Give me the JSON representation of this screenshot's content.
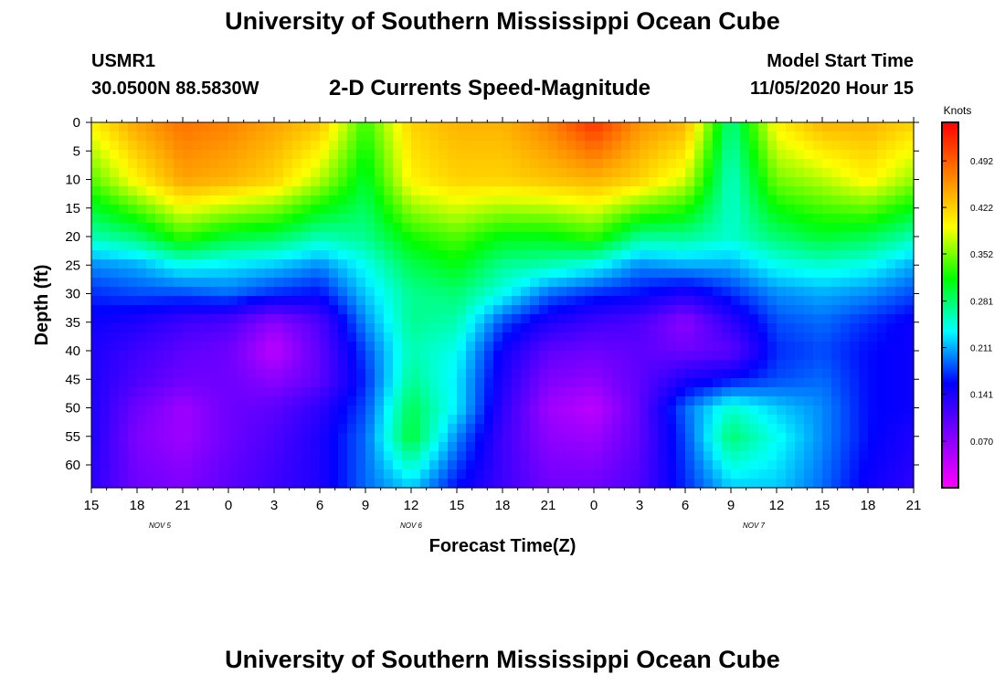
{
  "header": {
    "title": "University of Southern Mississippi Ocean Cube",
    "station": "USMR1",
    "coords": "30.0500N 88.5830W",
    "plot_title": "2-D Currents Speed-Magnitude",
    "model_label": "Model Start Time",
    "model_time": "11/05/2020 Hour 15"
  },
  "footer": {
    "title": "University of Southern Mississippi Ocean Cube"
  },
  "chart_data": {
    "type": "heatmap",
    "title": "2-D Currents Speed-Magnitude",
    "xlabel": "Forecast Time(Z)",
    "ylabel": "Depth (ft)",
    "x_ticks": [
      "15",
      "18",
      "21",
      "0",
      "3",
      "6",
      "9",
      "12",
      "15",
      "18",
      "21",
      "0",
      "3",
      "6",
      "9",
      "12",
      "15",
      "18",
      "21"
    ],
    "x_hours": [
      0,
      3,
      6,
      9,
      12,
      15,
      18,
      21,
      24,
      27,
      30,
      33,
      36,
      39,
      42,
      45,
      48,
      51,
      54
    ],
    "x_range_hours": [
      0,
      54
    ],
    "date_labels": [
      {
        "label": "NOV 5",
        "hour": 4.5
      },
      {
        "label": "NOV 6",
        "hour": 21
      },
      {
        "label": "NOV 7",
        "hour": 43.5
      }
    ],
    "y_ticks": [
      0,
      5,
      10,
      15,
      20,
      25,
      30,
      35,
      40,
      45,
      50,
      55,
      60
    ],
    "y_range": [
      0,
      64
    ],
    "colorbar": {
      "label": "Knots",
      "ticks": [
        0.492,
        0.422,
        0.352,
        0.281,
        0.211,
        0.141,
        0.07
      ],
      "range": [
        0.0,
        0.55
      ],
      "colors": [
        "#ff00ff",
        "#8000ff",
        "#0000ff",
        "#00ffff",
        "#00ff00",
        "#ffff00",
        "#ff8000",
        "#ff0000"
      ]
    },
    "grid_depths": [
      0,
      10,
      20,
      25,
      30,
      35,
      40,
      45,
      50,
      55,
      64
    ],
    "grid_hours": [
      0,
      3,
      6,
      9,
      12,
      15,
      18,
      21,
      24,
      27,
      30,
      33,
      36,
      39,
      42,
      45,
      48,
      51,
      54
    ],
    "grid_values": [
      [
        0.4,
        0.45,
        0.48,
        0.47,
        0.45,
        0.43,
        0.33,
        0.42,
        0.44,
        0.44,
        0.47,
        0.52,
        0.46,
        0.44,
        0.27,
        0.4,
        0.44,
        0.44,
        0.42
      ],
      [
        0.34,
        0.4,
        0.45,
        0.44,
        0.42,
        0.37,
        0.3,
        0.4,
        0.42,
        0.42,
        0.43,
        0.44,
        0.42,
        0.38,
        0.25,
        0.35,
        0.37,
        0.4,
        0.36
      ],
      [
        0.26,
        0.28,
        0.33,
        0.3,
        0.29,
        0.26,
        0.27,
        0.32,
        0.34,
        0.31,
        0.31,
        0.33,
        0.27,
        0.27,
        0.25,
        0.28,
        0.3,
        0.29,
        0.26
      ],
      [
        0.2,
        0.21,
        0.24,
        0.23,
        0.22,
        0.2,
        0.24,
        0.29,
        0.31,
        0.27,
        0.26,
        0.24,
        0.2,
        0.21,
        0.21,
        0.24,
        0.25,
        0.24,
        0.21
      ],
      [
        0.17,
        0.18,
        0.18,
        0.19,
        0.17,
        0.16,
        0.22,
        0.27,
        0.28,
        0.24,
        0.19,
        0.17,
        0.16,
        0.14,
        0.17,
        0.2,
        0.21,
        0.2,
        0.18
      ],
      [
        0.15,
        0.14,
        0.12,
        0.11,
        0.07,
        0.11,
        0.2,
        0.27,
        0.26,
        0.18,
        0.14,
        0.12,
        0.11,
        0.07,
        0.13,
        0.18,
        0.19,
        0.17,
        0.15
      ],
      [
        0.14,
        0.12,
        0.1,
        0.09,
        0.04,
        0.1,
        0.18,
        0.26,
        0.24,
        0.15,
        0.1,
        0.09,
        0.1,
        0.09,
        0.1,
        0.17,
        0.18,
        0.16,
        0.15
      ],
      [
        0.14,
        0.11,
        0.09,
        0.09,
        0.07,
        0.1,
        0.17,
        0.27,
        0.23,
        0.14,
        0.08,
        0.07,
        0.1,
        0.14,
        0.16,
        0.18,
        0.19,
        0.16,
        0.15
      ],
      [
        0.14,
        0.09,
        0.06,
        0.09,
        0.1,
        0.13,
        0.18,
        0.29,
        0.23,
        0.13,
        0.06,
        0.04,
        0.1,
        0.19,
        0.25,
        0.22,
        0.2,
        0.16,
        0.15
      ],
      [
        0.14,
        0.08,
        0.06,
        0.09,
        0.11,
        0.14,
        0.19,
        0.3,
        0.2,
        0.12,
        0.07,
        0.06,
        0.1,
        0.18,
        0.28,
        0.24,
        0.2,
        0.16,
        0.14
      ],
      [
        0.13,
        0.09,
        0.08,
        0.1,
        0.12,
        0.14,
        0.19,
        0.22,
        0.16,
        0.12,
        0.09,
        0.09,
        0.11,
        0.17,
        0.22,
        0.22,
        0.19,
        0.15,
        0.13
      ]
    ]
  }
}
